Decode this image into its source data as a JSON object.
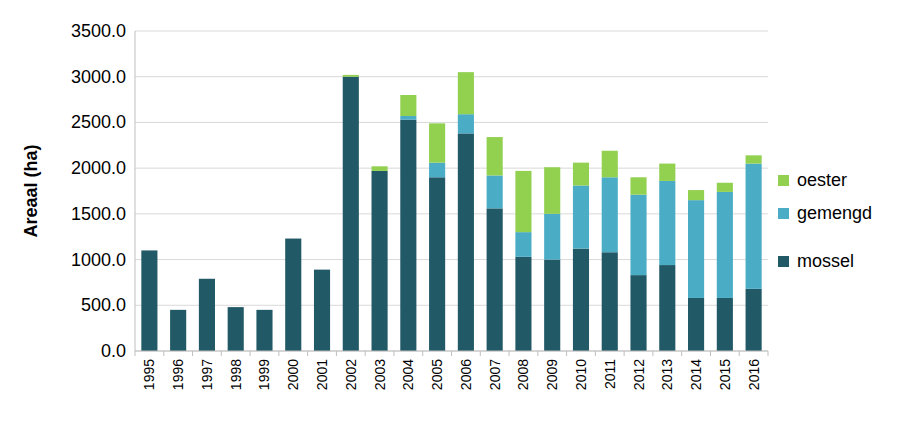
{
  "chart_data": {
    "type": "bar",
    "stacked": true,
    "y_label": "Areaal (ha)",
    "categories": [
      "1995",
      "1996",
      "1997",
      "1998",
      "1999",
      "2000",
      "2001",
      "2002",
      "2003",
      "2004",
      "2005",
      "2006",
      "2007",
      "2008",
      "2009",
      "2010",
      "2011",
      "2012",
      "2013",
      "2014",
      "2015",
      "2016"
    ],
    "series": [
      {
        "name": "mossel",
        "color": "#215967",
        "values": [
          1100,
          450,
          790,
          480,
          450,
          1230,
          890,
          3000,
          1970,
          2530,
          1900,
          2380,
          1560,
          1030,
          1000,
          1120,
          1080,
          830,
          940,
          580,
          580,
          680
        ]
      },
      {
        "name": "gemengd",
        "color": "#4bacc6",
        "values": [
          0,
          0,
          0,
          0,
          0,
          0,
          0,
          0,
          0,
          40,
          160,
          210,
          360,
          270,
          500,
          690,
          820,
          880,
          920,
          1070,
          1160,
          1370
        ]
      },
      {
        "name": "oester",
        "color": "#92d050",
        "values": [
          0,
          0,
          0,
          0,
          0,
          0,
          0,
          20,
          50,
          230,
          430,
          460,
          420,
          670,
          510,
          250,
          290,
          190,
          190,
          110,
          100,
          90
        ]
      }
    ],
    "ylim": [
      0,
      3500
    ],
    "yticks": [
      {
        "value": 0,
        "label": "0.0"
      },
      {
        "value": 500,
        "label": "500.0"
      },
      {
        "value": 1000,
        "label": "1000.0"
      },
      {
        "value": 1500,
        "label": "1500.0"
      },
      {
        "value": 2000,
        "label": "2000.0"
      },
      {
        "value": 2500,
        "label": "2500.0"
      },
      {
        "value": 3000,
        "label": "3000.0"
      },
      {
        "value": 3500,
        "label": "3500.0"
      }
    ],
    "grid": true,
    "legend": "right"
  }
}
